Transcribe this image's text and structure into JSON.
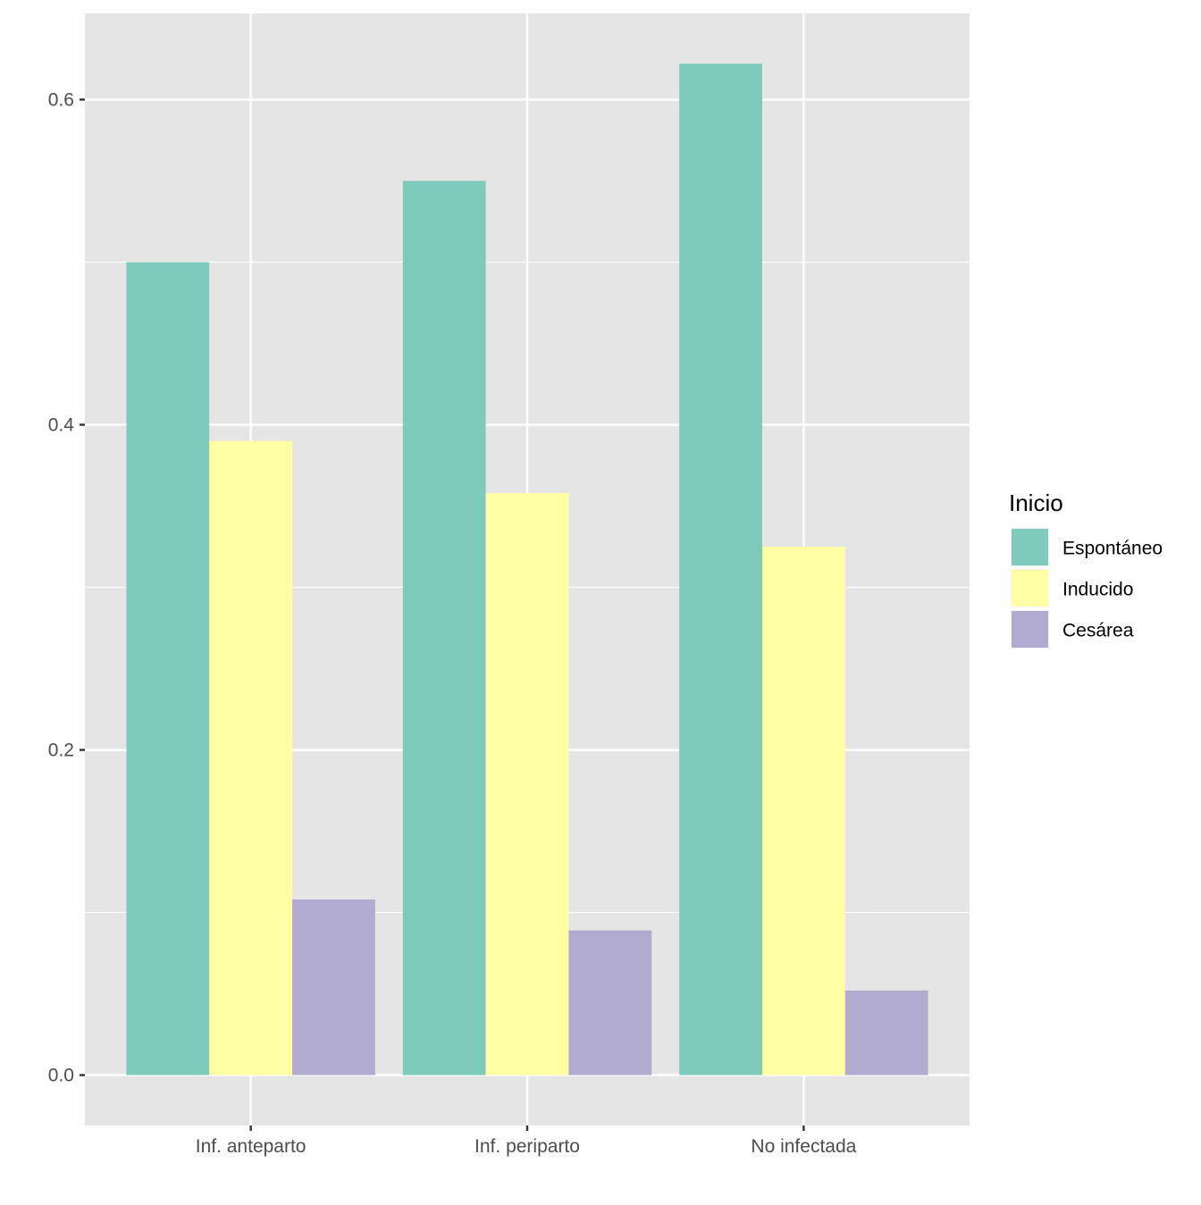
{
  "chart_data": {
    "type": "bar",
    "title": "",
    "xlabel": "",
    "ylabel": "",
    "categories": [
      "Inf. anteparto",
      "Inf. periparto",
      "No infectada"
    ],
    "series": [
      {
        "name": "Espontáneo",
        "color": "#7fcbbb",
        "values": [
          0.5,
          0.55,
          0.622
        ]
      },
      {
        "name": "Inducido",
        "color": "#ffffa3",
        "values": [
          0.39,
          0.358,
          0.325
        ]
      },
      {
        "name": "Cesárea",
        "color": "#b1abd0",
        "values": [
          0.108,
          0.089,
          0.052
        ]
      }
    ],
    "ylim": [
      -0.031,
      0.653
    ],
    "yticks": [
      0.0,
      0.2,
      0.4,
      0.6
    ],
    "ytick_labels": [
      "0.0",
      "0.2",
      "0.4",
      "0.6"
    ],
    "grid": true,
    "panel_background": "#e5e5e5",
    "legend": {
      "title": "Inicio",
      "position": "right",
      "items": [
        "Espontáneo",
        "Inducido",
        "Cesárea"
      ]
    }
  }
}
